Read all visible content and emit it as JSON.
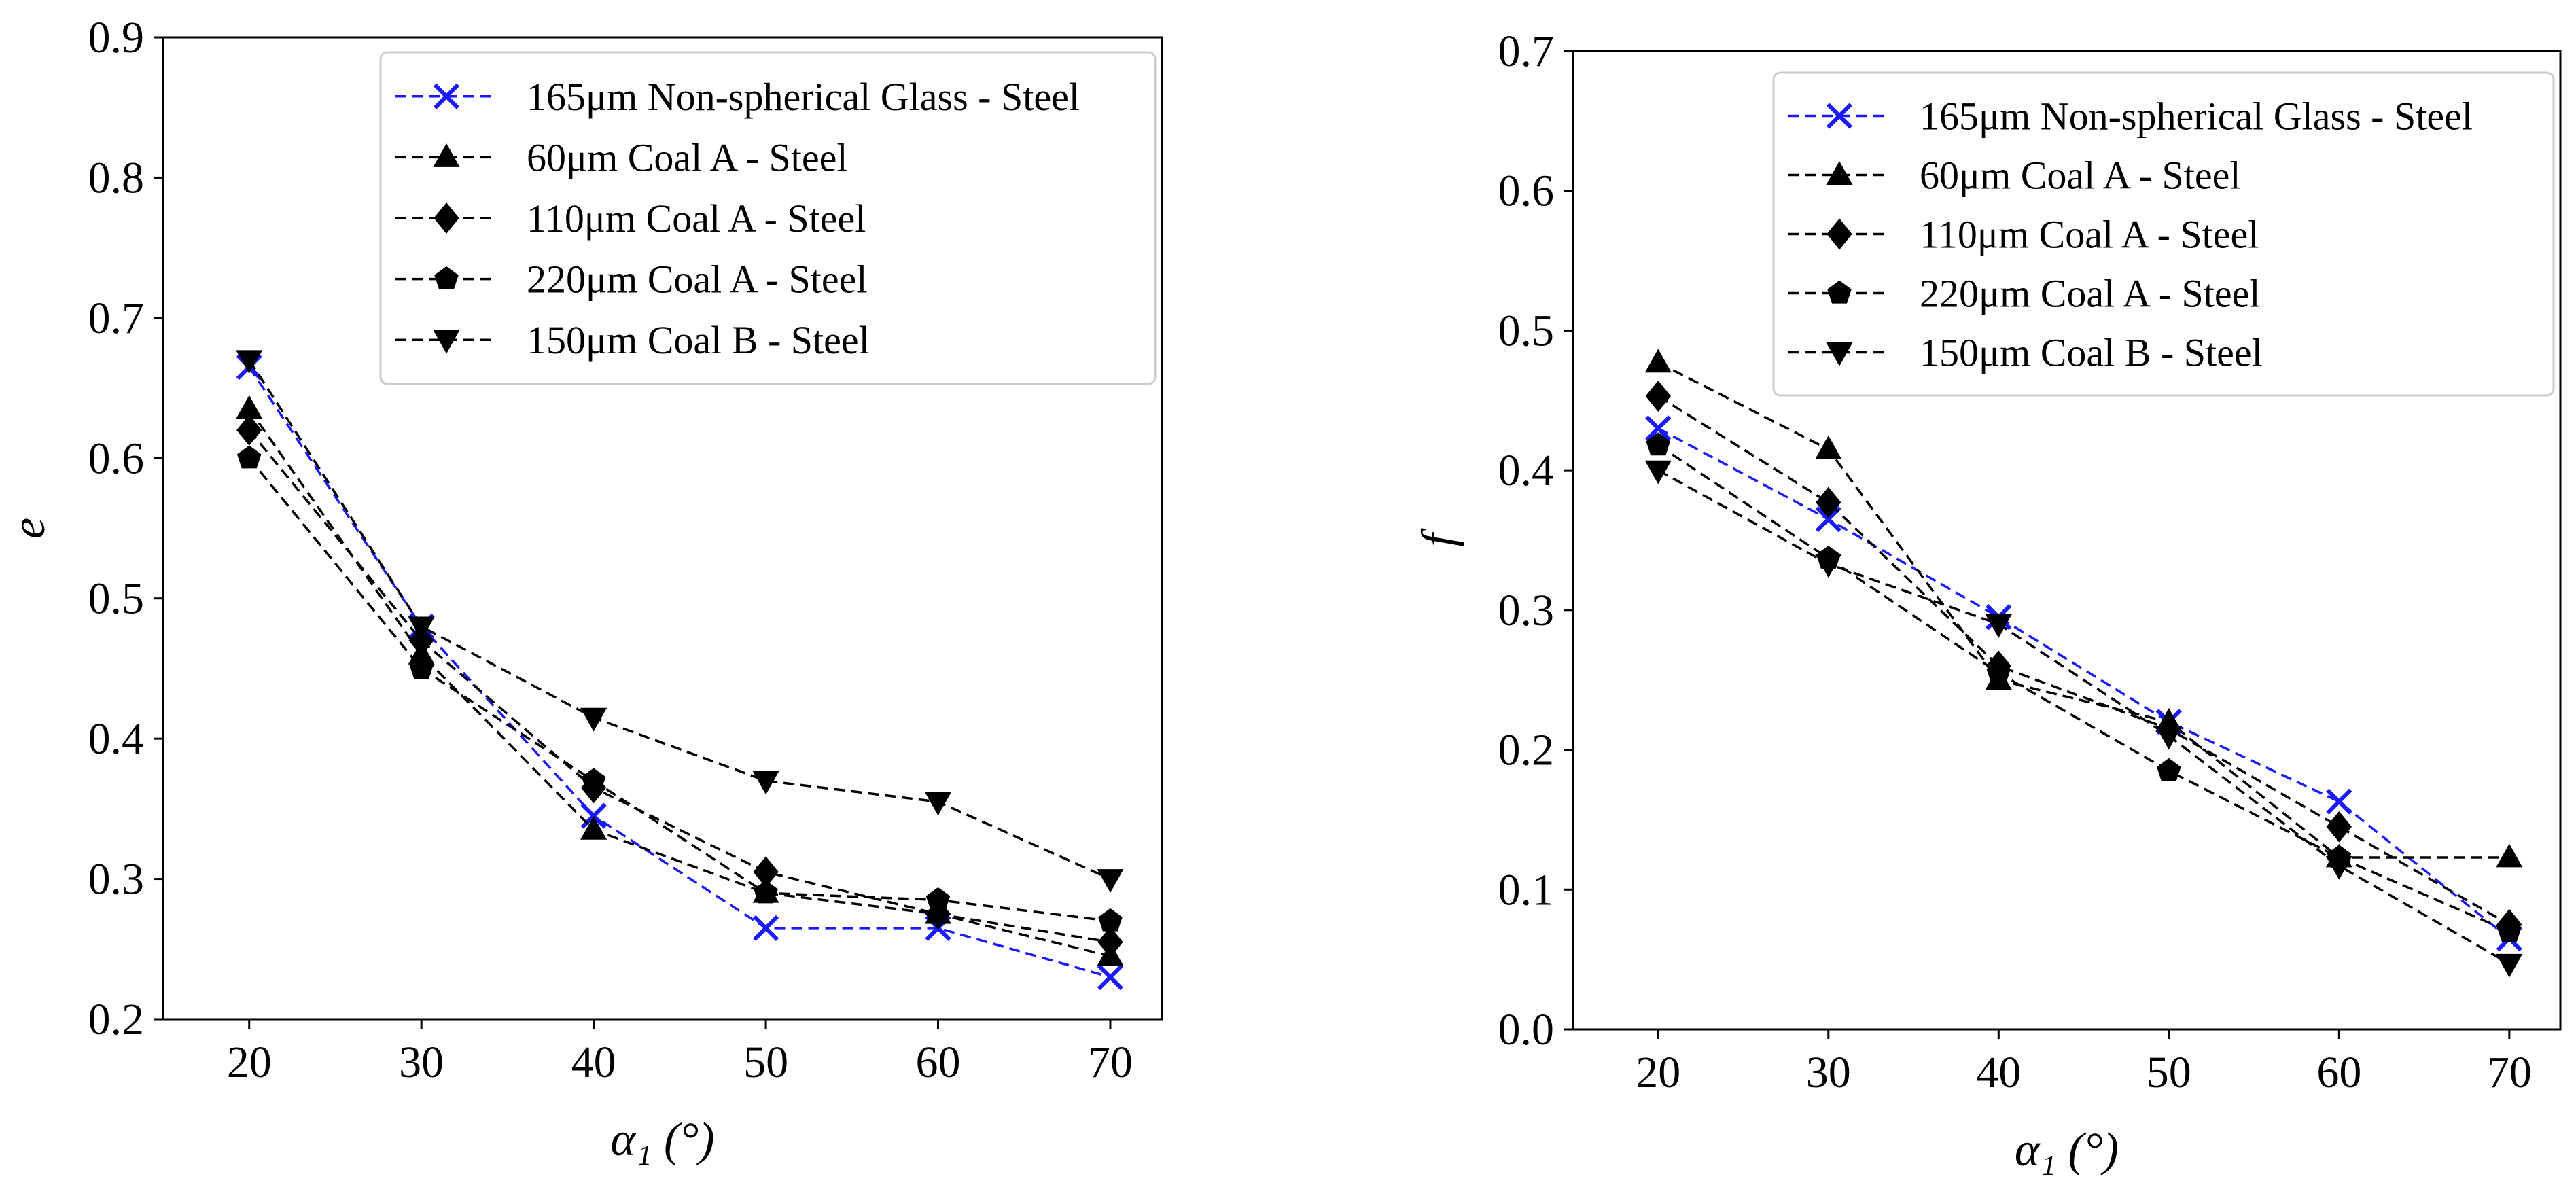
{
  "chart_data": [
    {
      "type": "line",
      "xlabel": "α₁ (°)",
      "ylabel": "e",
      "x": [
        20,
        30,
        40,
        50,
        60,
        70
      ],
      "xticks": [
        "20",
        "30",
        "40",
        "50",
        "60",
        "70"
      ],
      "xlim": [
        15,
        73
      ],
      "ylim": [
        0.2,
        0.9
      ],
      "yticks": [
        "0.2",
        "0.3",
        "0.4",
        "0.5",
        "0.6",
        "0.7",
        "0.8",
        "0.9"
      ],
      "grid": false,
      "legend_position": "top-right",
      "series": [
        {
          "name": "165μm Non-spherical Glass - Steel",
          "marker": "x",
          "color": "#1a1aff",
          "values": [
            0.665,
            0.48,
            0.345,
            0.265,
            0.265,
            0.23
          ]
        },
        {
          "name": "60μm Coal A - Steel",
          "marker": "triangle-up",
          "color": "#000000",
          "values": [
            0.635,
            0.46,
            0.335,
            0.29,
            0.275,
            0.245
          ]
        },
        {
          "name": "110μm Coal A - Steel",
          "marker": "diamond",
          "color": "#000000",
          "values": [
            0.62,
            0.47,
            0.365,
            0.305,
            0.275,
            0.255
          ]
        },
        {
          "name": "220μm Coal A - Steel",
          "marker": "pentagon",
          "color": "#000000",
          "values": [
            0.6,
            0.45,
            0.37,
            0.29,
            0.285,
            0.27
          ]
        },
        {
          "name": "150μm Coal B - Steel",
          "marker": "triangle-down",
          "color": "#000000",
          "values": [
            0.67,
            0.48,
            0.415,
            0.37,
            0.355,
            0.3
          ]
        }
      ]
    },
    {
      "type": "line",
      "xlabel": "α₁ (°)",
      "ylabel": "f",
      "x": [
        20,
        30,
        40,
        50,
        60,
        70
      ],
      "xticks": [
        "20",
        "30",
        "40",
        "50",
        "60",
        "70"
      ],
      "xlim": [
        15,
        73
      ],
      "ylim": [
        0.0,
        0.7
      ],
      "yticks": [
        "0.0",
        "0.1",
        "0.2",
        "0.3",
        "0.4",
        "0.5",
        "0.6",
        "0.7"
      ],
      "grid": false,
      "legend_position": "top-right",
      "series": [
        {
          "name": "165μm Non-spherical Glass - Steel",
          "marker": "x",
          "color": "#1a1aff",
          "values": [
            0.43,
            0.365,
            0.295,
            0.22,
            0.163,
            0.065
          ]
        },
        {
          "name": "60μm Coal A - Steel",
          "marker": "triangle-up",
          "color": "#000000",
          "values": [
            0.477,
            0.415,
            0.25,
            0.22,
            0.123,
            0.123
          ]
        },
        {
          "name": "110μm Coal A - Steel",
          "marker": "diamond",
          "color": "#000000",
          "values": [
            0.453,
            0.377,
            0.26,
            0.215,
            0.145,
            0.075
          ]
        },
        {
          "name": "220μm Coal A - Steel",
          "marker": "pentagon",
          "color": "#000000",
          "values": [
            0.418,
            0.337,
            0.255,
            0.185,
            0.123,
            0.07
          ]
        },
        {
          "name": "150μm Coal B - Steel",
          "marker": "triangle-down",
          "color": "#000000",
          "values": [
            0.4,
            0.333,
            0.29,
            0.21,
            0.117,
            0.047
          ]
        }
      ]
    }
  ]
}
